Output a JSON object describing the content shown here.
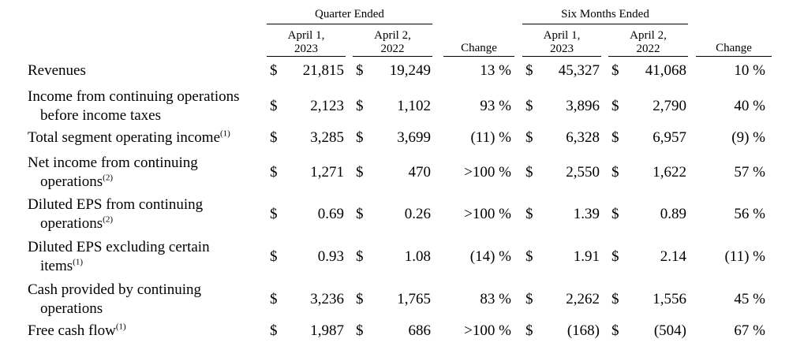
{
  "groups": {
    "quarter": "Quarter Ended",
    "six_months": "Six Months Ended"
  },
  "column_headers": {
    "q_cur_line1": "April 1,",
    "q_cur_line2": "2023",
    "q_prev_line1": "April 2,",
    "q_prev_line2": "2022",
    "q_change": "Change",
    "s_cur_line1": "April 1,",
    "s_cur_line2": "2023",
    "s_prev_line1": "April 2,",
    "s_prev_line2": "2022",
    "s_change": "Change"
  },
  "rows": [
    {
      "line1": "Revenues",
      "line2": "",
      "sup": "",
      "q_cur": "21,815",
      "q_prev": "19,249",
      "q_chg": "13 %",
      "s_cur": "45,327",
      "s_prev": "41,068",
      "s_chg": "10 %"
    },
    {
      "line1": "Income from continuing operations",
      "line2": "before income taxes",
      "sup": "",
      "q_cur": "2,123",
      "q_prev": "1,102",
      "q_chg": "93 %",
      "s_cur": "3,896",
      "s_prev": "2,790",
      "s_chg": "40 %"
    },
    {
      "line1": "Total segment operating income",
      "line2": "",
      "sup": "(1)",
      "q_cur": "3,285",
      "q_prev": "3,699",
      "q_chg": "(11) %",
      "s_cur": "6,328",
      "s_prev": "6,957",
      "s_chg": "(9) %"
    },
    {
      "line1": "Net income from continuing",
      "line2": "operations",
      "sup": "(2)",
      "q_cur": "1,271",
      "q_prev": "470",
      "q_chg": ">100 %",
      "s_cur": "2,550",
      "s_prev": "1,622",
      "s_chg": "57 %"
    },
    {
      "line1": "Diluted EPS from continuing",
      "line2": "operations",
      "sup": "(2)",
      "q_cur": "0.69",
      "q_prev": "0.26",
      "q_chg": ">100 %",
      "s_cur": "1.39",
      "s_prev": "0.89",
      "s_chg": "56 %"
    },
    {
      "line1": "Diluted EPS excluding certain",
      "line2": "items",
      "sup": "(1)",
      "q_cur": "0.93",
      "q_prev": "1.08",
      "q_chg": "(14) %",
      "s_cur": "1.91",
      "s_prev": "2.14",
      "s_chg": "(11) %"
    },
    {
      "line1": "Cash provided by continuing",
      "line2": "operations",
      "sup": "",
      "q_cur": "3,236",
      "q_prev": "1,765",
      "q_chg": "83 %",
      "s_cur": "2,262",
      "s_prev": "1,556",
      "s_chg": "45 %"
    },
    {
      "line1": "Free cash flow",
      "line2": "",
      "sup": "(1)",
      "q_cur": "1,987",
      "q_prev": "686",
      "q_chg": ">100 %",
      "s_cur": "(168)",
      "s_prev": "(504)",
      "s_chg": "67 %"
    }
  ],
  "currency_symbol": "$"
}
